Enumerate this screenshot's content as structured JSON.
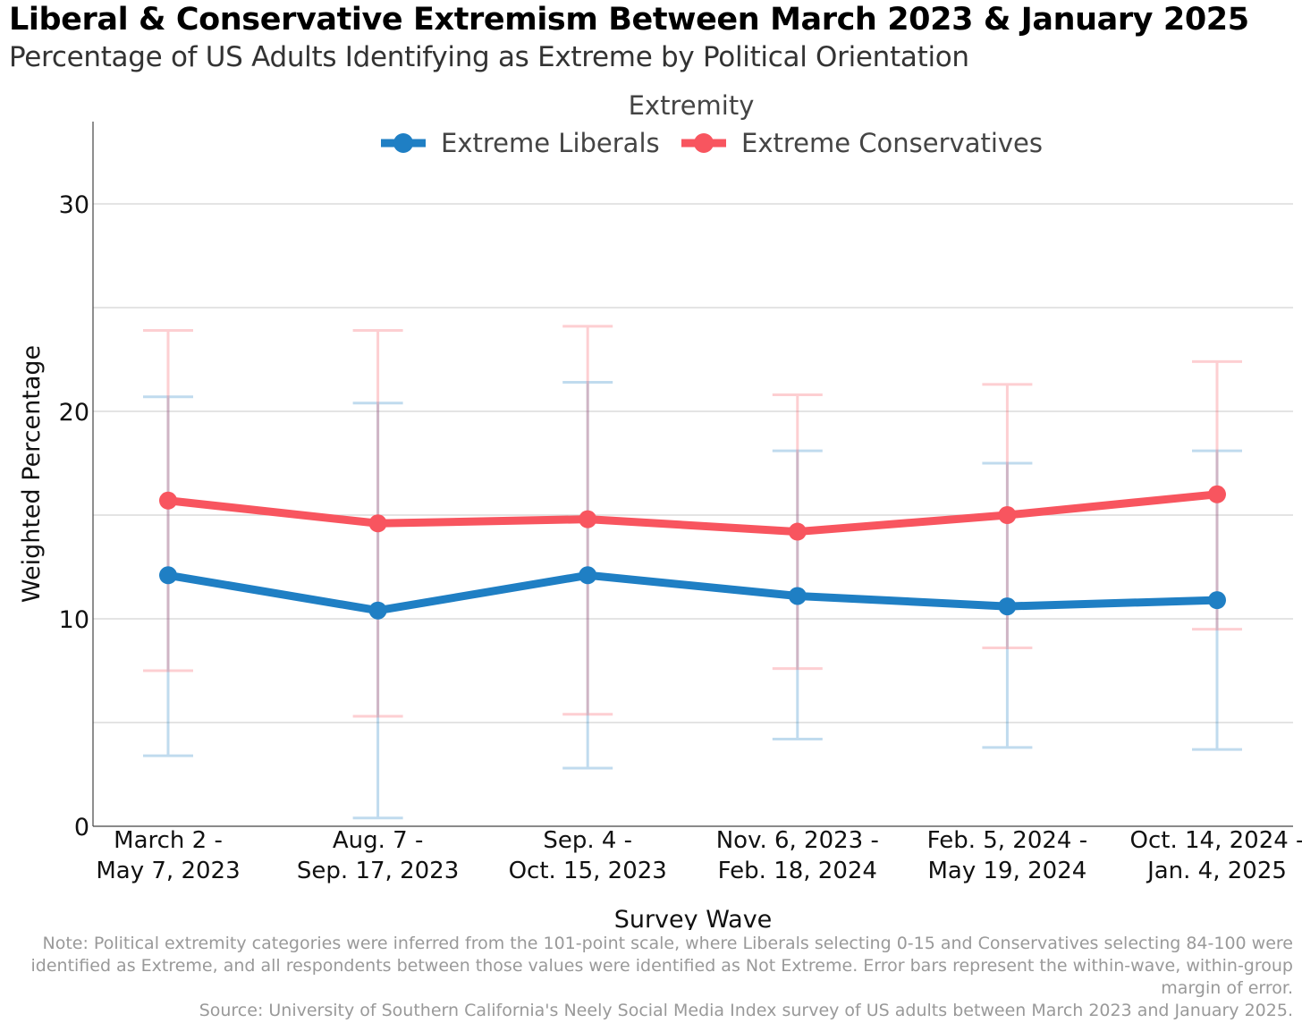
{
  "header": {
    "title": "Liberal & Conservative Extremism Between March 2023 & January 2025",
    "subtitle": "Percentage of US Adults Identifying as Extreme by Political Orientation"
  },
  "footer": {
    "note": "Note: Political extremity categories were inferred from the 101-point scale, where Liberals selecting 0-15 and Conservatives selecting 84-100 were identified as Extreme, and all respondents between those values were identified as Not Extreme. Error bars represent the within-wave, within-group margin of error.",
    "source": "Source: University of Southern California's Neely Social Media Index survey of US adults between March 2023 and January 2025."
  },
  "chart_data": {
    "type": "line",
    "title": "Liberal & Conservative Extremism Between March 2023 & January 2025",
    "subtitle": "Percentage of US Adults Identifying as Extreme by Political Orientation",
    "xlabel": "Survey Wave",
    "ylabel": "Weighted Percentage",
    "legend_title": "Extremity",
    "legend_position": "top-center",
    "grid": true,
    "ylim": [
      0,
      34
    ],
    "yticks": [
      0,
      10,
      20,
      30
    ],
    "categories": [
      [
        "March 2 -",
        "May 7, 2023"
      ],
      [
        "Aug. 7 -",
        "Sep. 17, 2023"
      ],
      [
        "Sep. 4 -",
        "Oct. 15, 2023"
      ],
      [
        "Nov. 6, 2023 -",
        "Feb. 18, 2024"
      ],
      [
        "Feb. 5, 2024 -",
        "May 19, 2024"
      ],
      [
        "Oct. 14, 2024 -",
        "Jan. 4, 2025"
      ]
    ],
    "series": [
      {
        "name": "Extreme Liberals",
        "color": "#1f7fc4",
        "values": [
          12.1,
          10.4,
          12.1,
          11.1,
          10.6,
          10.9
        ],
        "error_low": [
          3.4,
          0.4,
          2.8,
          4.2,
          3.8,
          3.7
        ],
        "error_high": [
          20.7,
          20.4,
          21.4,
          18.1,
          17.5,
          18.1
        ]
      },
      {
        "name": "Extreme Conservatives",
        "color": "#f8555f",
        "values": [
          15.7,
          14.6,
          14.8,
          14.2,
          15.0,
          16.0
        ],
        "error_low": [
          7.5,
          5.3,
          5.4,
          7.6,
          8.6,
          9.5
        ],
        "error_high": [
          23.9,
          23.9,
          24.1,
          20.8,
          21.3,
          22.4
        ]
      }
    ]
  }
}
